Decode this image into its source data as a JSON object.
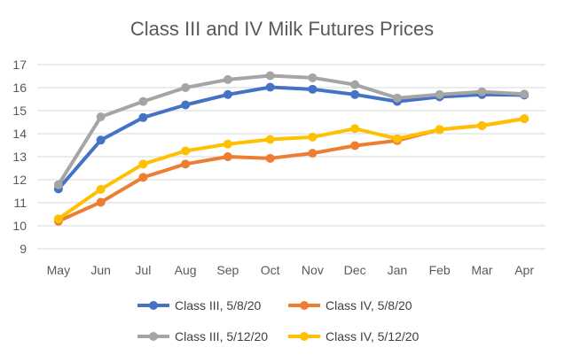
{
  "chart_data": {
    "type": "line",
    "title": "Class III and IV Milk Futures Prices",
    "xlabel": "",
    "ylabel": "",
    "categories": [
      "May",
      "Jun",
      "Jul",
      "Aug",
      "Sep",
      "Oct",
      "Nov",
      "Dec",
      "Jan",
      "Feb",
      "Mar",
      "Apr"
    ],
    "ylim": [
      9,
      17
    ],
    "yticks": [
      "9",
      "10",
      "11",
      "12",
      "13",
      "14",
      "15",
      "16",
      "17"
    ],
    "grid": true,
    "legend_position": "bottom",
    "series": [
      {
        "name": "Class III, 5/8/20",
        "color": "#4472C4",
        "values": [
          11.6,
          13.72,
          14.7,
          15.25,
          15.7,
          16.02,
          15.93,
          15.7,
          15.4,
          15.6,
          15.7,
          15.68
        ]
      },
      {
        "name": "Class IV, 5/8/20",
        "color": "#ED7D31",
        "values": [
          10.2,
          11.02,
          12.1,
          12.68,
          13.0,
          12.93,
          13.15,
          13.48,
          13.7,
          14.18,
          14.35,
          14.65
        ]
      },
      {
        "name": "Class III, 5/12/20",
        "color": "#A5A5A5",
        "values": [
          11.78,
          14.73,
          15.4,
          16.0,
          16.35,
          16.52,
          16.43,
          16.13,
          15.55,
          15.7,
          15.82,
          15.72
        ]
      },
      {
        "name": "Class IV, 5/12/20",
        "color": "#FFC000",
        "values": [
          10.3,
          11.58,
          12.68,
          13.25,
          13.55,
          13.75,
          13.85,
          14.22,
          13.78,
          14.18,
          14.35,
          14.65
        ]
      }
    ]
  }
}
